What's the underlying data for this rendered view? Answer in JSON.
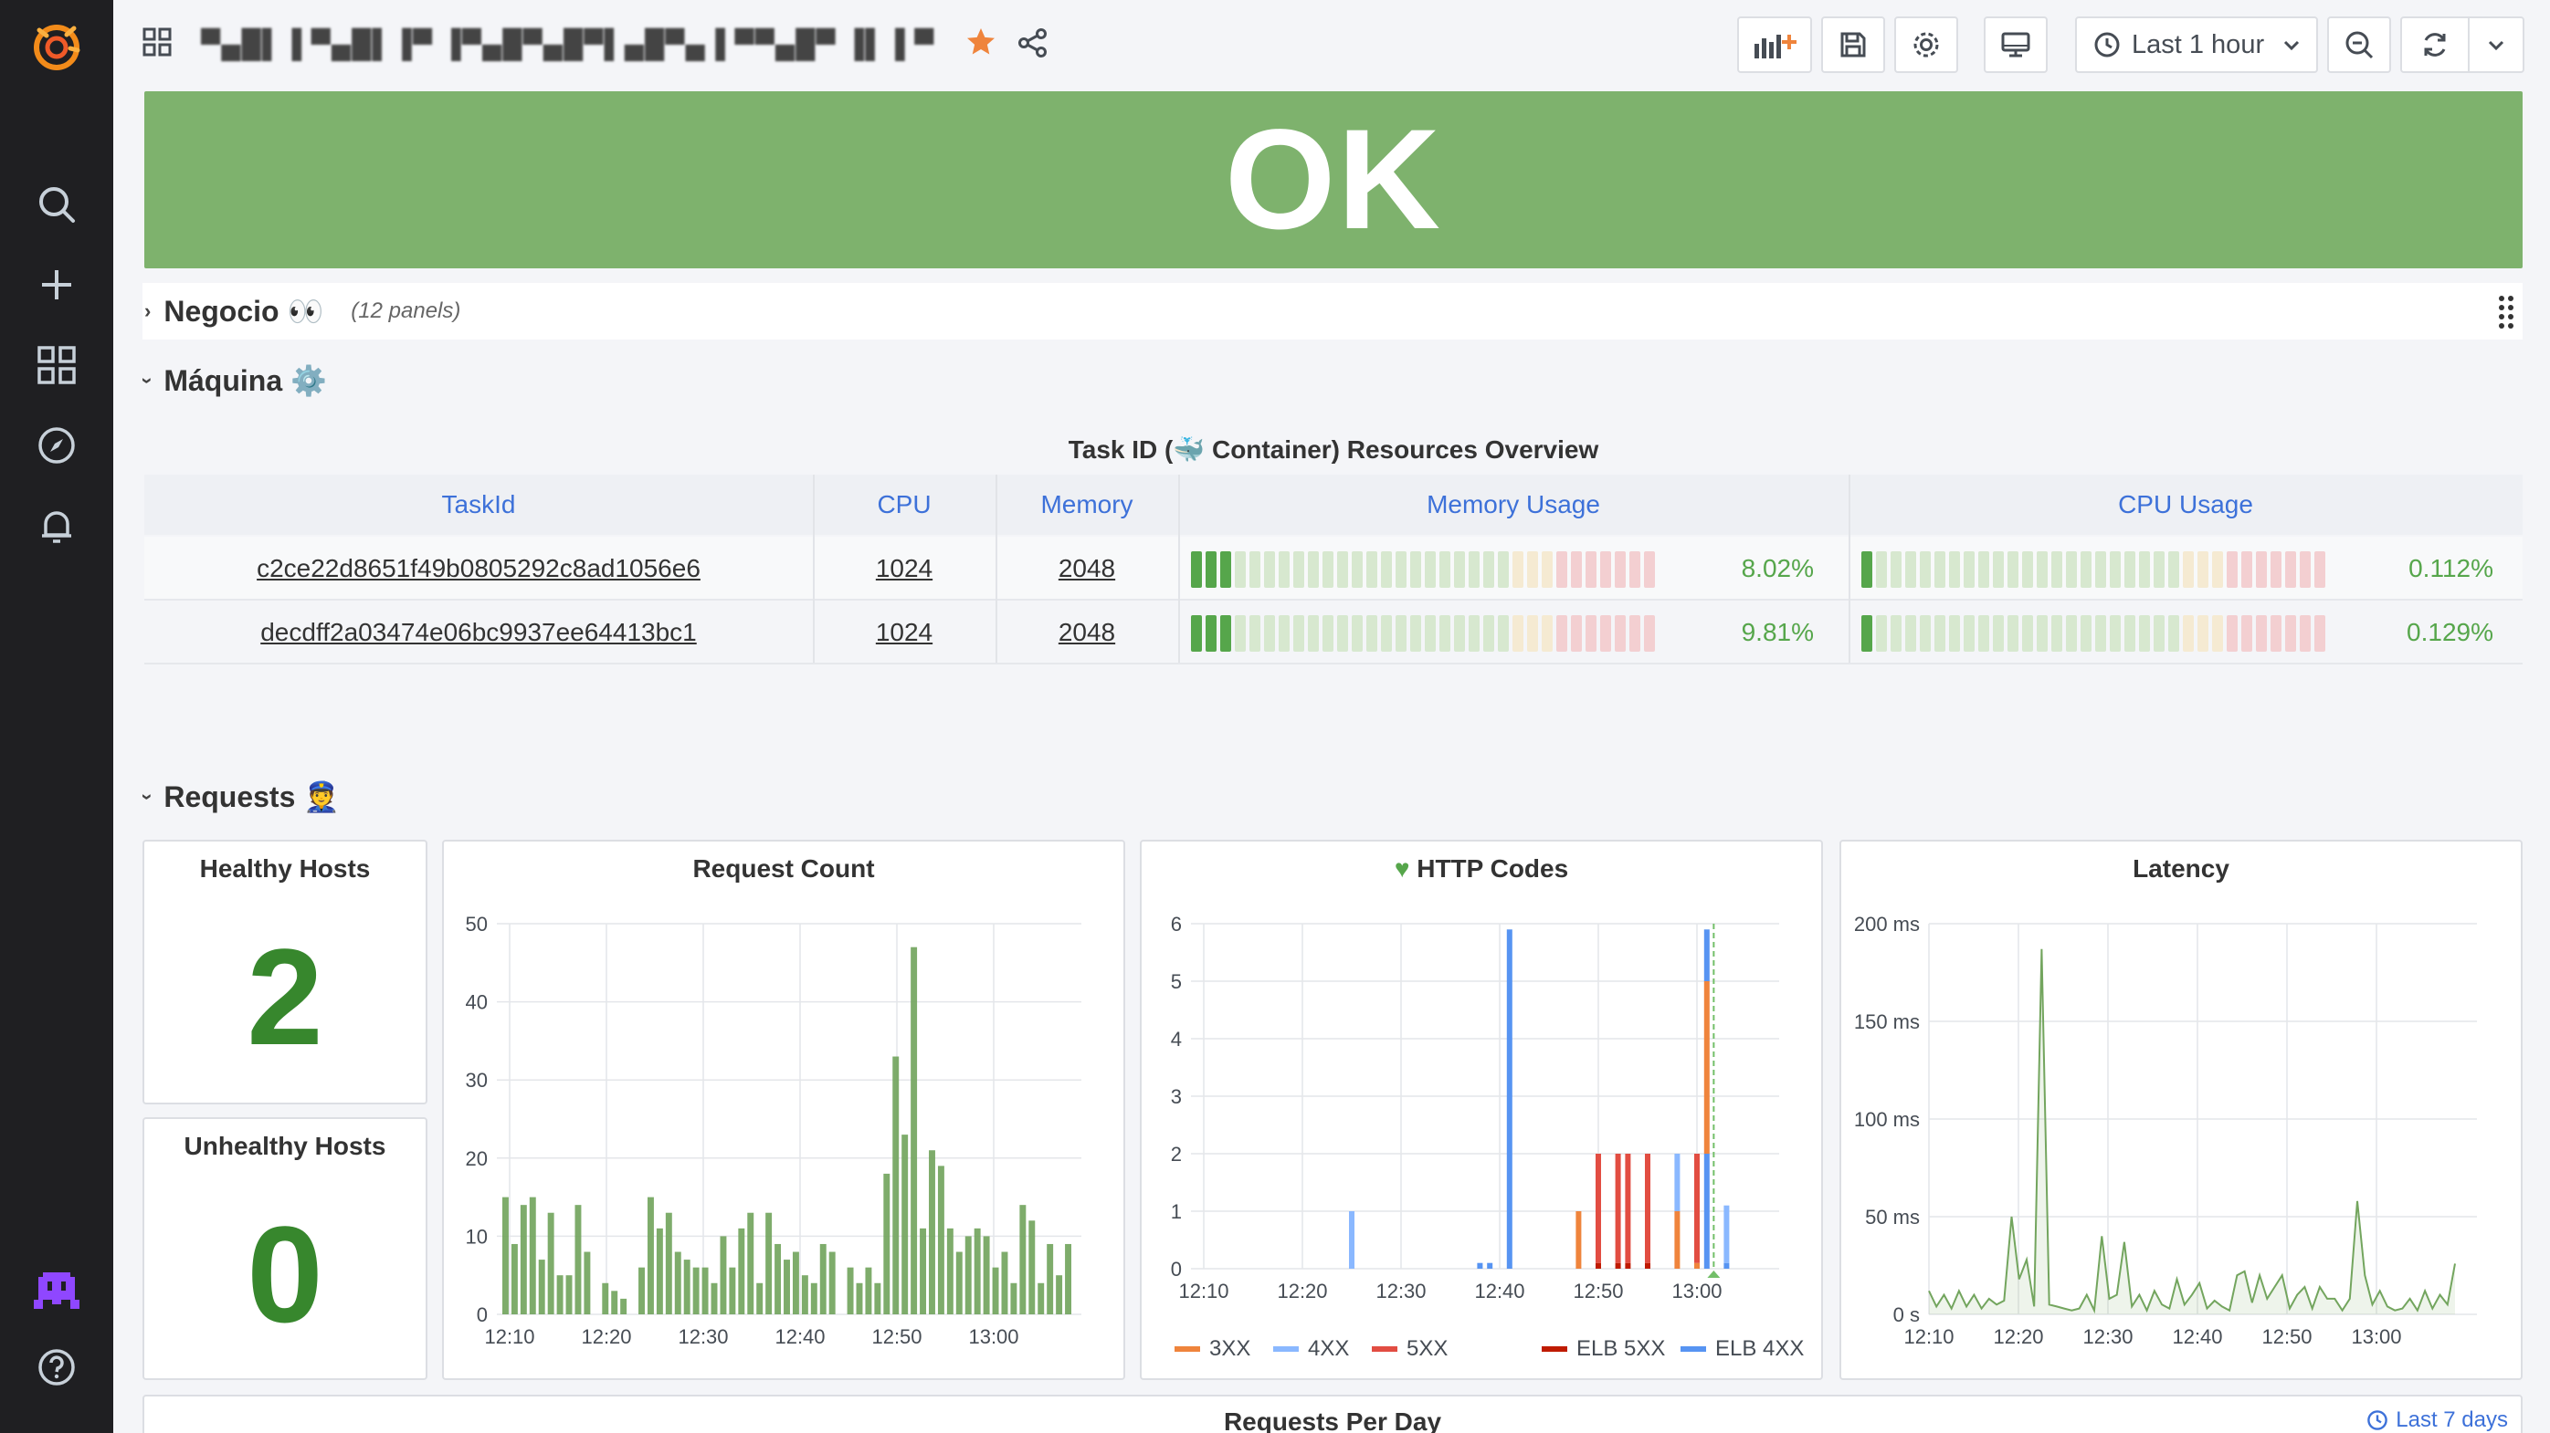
{
  "topbar": {
    "breadcrumb": "▀▄█▌▐ ▀▄█▌▐▀ ▐▀▄█▀▄█▀▌▄█▀▄▐ ▀▀▄█▀ ▐▌▐ ▀",
    "time_range": "Last 1 hour"
  },
  "status": {
    "value": "OK"
  },
  "rows": {
    "negocio": {
      "title": "Negocio 👀",
      "meta": "(12 panels)"
    },
    "maquina": {
      "title": "Máquina ⚙️"
    },
    "requests": {
      "title": "Requests 👮"
    }
  },
  "resources_table": {
    "title": "Task ID (🐳 Container) Resources Overview",
    "columns": [
      "TaskId",
      "CPU",
      "Memory",
      "Memory Usage",
      "CPU Usage"
    ],
    "rows": [
      {
        "task_id": "c2ce22d8651f49b0805292c8ad1056e6",
        "cpu": "1024",
        "memory": "2048",
        "memory_usage": "8.02%",
        "memory_usage_value": 8.02,
        "cpu_usage": "0.112%",
        "cpu_usage_value": 0.112
      },
      {
        "task_id": "decdff2a03474e06bc9937ee64413bc1",
        "cpu": "1024",
        "memory": "2048",
        "memory_usage": "9.81%",
        "memory_usage_value": 9.81,
        "cpu_usage": "0.129%",
        "cpu_usage_value": 0.129
      }
    ]
  },
  "healthy_hosts": {
    "title": "Healthy Hosts",
    "value": "2"
  },
  "unhealthy_hosts": {
    "title": "Unhealthy Hosts",
    "value": "0"
  },
  "requests_per_day": {
    "title": "Requests Per Day",
    "range": "Last 7 days"
  },
  "colors": {
    "ok_green": "#7eb26d",
    "bar_green": "#73a55e",
    "stat_green": "#37872d",
    "link_blue": "#3d71d9",
    "orange": "#ef843c",
    "light_blue": "#8ab8ff",
    "red": "#e24d42",
    "dark_red": "#bf1b00",
    "blue": "#5794f2"
  },
  "chart_data": [
    {
      "type": "bar",
      "title": "Request Count",
      "x_ticks": [
        "12:10",
        "12:20",
        "12:30",
        "12:40",
        "12:50",
        "13:00"
      ],
      "y_ticks": [
        "0",
        "10",
        "20",
        "30",
        "40",
        "50"
      ],
      "ylim": [
        0,
        50
      ],
      "values": [
        15,
        9,
        14,
        15,
        7,
        13,
        5,
        5,
        14,
        8,
        0,
        4,
        3,
        2,
        0,
        6,
        15,
        11,
        13,
        8,
        7,
        6,
        6,
        4,
        10,
        6,
        11,
        13,
        4,
        13,
        9,
        7,
        8,
        5,
        4,
        9,
        8,
        0,
        6,
        4,
        6,
        4,
        18,
        33,
        23,
        47,
        11,
        21,
        19,
        11,
        8,
        10,
        11,
        10,
        6,
        8,
        4,
        14,
        12,
        4,
        9,
        5,
        9
      ]
    },
    {
      "type": "bar",
      "title": "HTTP Codes",
      "x_ticks": [
        "12:10",
        "12:20",
        "12:30",
        "12:40",
        "12:50",
        "13:00"
      ],
      "y_ticks": [
        "0",
        "1",
        "2",
        "3",
        "4",
        "5",
        "6"
      ],
      "ylim": [
        0,
        6
      ],
      "series": [
        {
          "name": "3XX",
          "color": "#ef843c"
        },
        {
          "name": "4XX",
          "color": "#8ab8ff"
        },
        {
          "name": "5XX",
          "color": "#e24d42"
        },
        {
          "name": "ELB 5XX",
          "color": "#bf1b00"
        },
        {
          "name": "ELB 4XX",
          "color": "#5794f2"
        }
      ],
      "bars": [
        {
          "x": "12:25",
          "segments": [
            {
              "series": "4XX",
              "value": 1
            }
          ]
        },
        {
          "x": "12:38",
          "segments": [
            {
              "series": "ELB 4XX",
              "value": 0.1
            }
          ]
        },
        {
          "x": "12:39",
          "segments": [
            {
              "series": "ELB 4XX",
              "value": 0.1
            }
          ]
        },
        {
          "x": "12:41",
          "segments": [
            {
              "series": "ELB 4XX",
              "value": 5.9
            }
          ]
        },
        {
          "x": "12:48",
          "segments": [
            {
              "series": "3XX",
              "value": 1
            }
          ]
        },
        {
          "x": "12:50",
          "segments": [
            {
              "series": "ELB 5XX",
              "value": 0.1
            },
            {
              "series": "5XX",
              "value": 1.9
            }
          ]
        },
        {
          "x": "12:52",
          "segments": [
            {
              "series": "ELB 5XX",
              "value": 0.1
            },
            {
              "series": "5XX",
              "value": 1.9
            }
          ]
        },
        {
          "x": "12:53",
          "segments": [
            {
              "series": "ELB 5XX",
              "value": 0.1
            },
            {
              "series": "5XX",
              "value": 1.9
            }
          ]
        },
        {
          "x": "12:55",
          "segments": [
            {
              "series": "ELB 5XX",
              "value": 0.1
            },
            {
              "series": "5XX",
              "value": 1.9
            }
          ]
        },
        {
          "x": "12:58",
          "segments": [
            {
              "series": "3XX",
              "value": 1
            },
            {
              "series": "4XX",
              "value": 1
            }
          ]
        },
        {
          "x": "13:00",
          "segments": [
            {
              "series": "3XX",
              "value": 0.1
            },
            {
              "series": "5XX",
              "value": 1.9
            }
          ]
        },
        {
          "x": "13:01",
          "segments": [
            {
              "series": "ELB 4XX",
              "value": 2
            },
            {
              "series": "3XX",
              "value": 3
            },
            {
              "series": "ELB 4XX",
              "value": 0.9
            }
          ]
        },
        {
          "x": "13:03",
          "segments": [
            {
              "series": "ELB 4XX",
              "value": 0.1
            },
            {
              "series": "4XX",
              "value": 1
            }
          ]
        }
      ]
    },
    {
      "type": "line",
      "title": "Latency",
      "x_ticks": [
        "12:10",
        "12:20",
        "12:30",
        "12:40",
        "12:50",
        "13:00"
      ],
      "y_ticks": [
        "0 s",
        "50 ms",
        "100 ms",
        "150 ms",
        "200 ms"
      ],
      "ylim": [
        0,
        200
      ],
      "values": [
        12,
        4,
        10,
        3,
        12,
        4,
        10,
        3,
        8,
        5,
        7,
        50,
        18,
        28,
        4,
        187,
        5,
        4,
        3,
        2,
        3,
        10,
        2,
        40,
        8,
        10,
        37,
        4,
        10,
        2,
        12,
        5,
        3,
        18,
        5,
        10,
        16,
        3,
        7,
        4,
        2,
        20,
        22,
        6,
        20,
        8,
        14,
        20,
        3,
        10,
        14,
        3,
        14,
        8,
        8,
        2,
        8,
        58,
        20,
        5,
        12,
        4,
        2,
        3,
        8,
        2,
        12,
        3,
        10,
        5,
        26
      ]
    }
  ]
}
